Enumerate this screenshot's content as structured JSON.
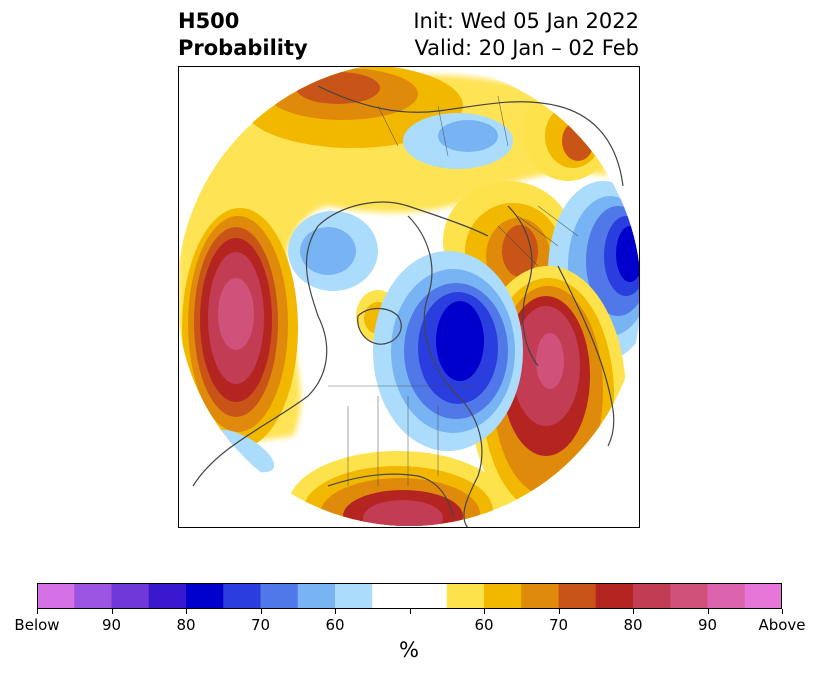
{
  "title": {
    "left_line1": "H500",
    "left_line2": "Probability",
    "right_line1": "Init: Wed 05 Jan 2022",
    "right_line2": "Valid: 20 Jan – 02 Feb"
  },
  "colorbar": {
    "unit": "%",
    "labels": [
      "Below",
      "90",
      "80",
      "70",
      "60",
      "60",
      "70",
      "80",
      "90",
      "Above"
    ],
    "colors": [
      "#d670e6",
      "#9b55e0",
      "#7038d8",
      "#3a18d0",
      "#0000cc",
      "#2a3ee0",
      "#5078e8",
      "#78b4f4",
      "#acdcfc",
      "#ffffff",
      "#ffffff",
      "#fee24c",
      "#f2b800",
      "#e08a0c",
      "#c85418",
      "#b42420",
      "#c23c54",
      "#d0527a",
      "#dc64ae",
      "#e676d8"
    ]
  },
  "map": {
    "projection": "north-polar-stereographic",
    "anomalies": [
      {
        "region": "North Pacific",
        "sign": "above",
        "max_level": "90"
      },
      {
        "region": "North Atlantic",
        "sign": "above",
        "max_level": "90"
      },
      {
        "region": "Southeastern United States / Gulf",
        "sign": "above",
        "max_level": "80"
      },
      {
        "region": "Eastern Canada / Hudson Bay",
        "sign": "below",
        "max_level": "80"
      },
      {
        "region": "Western Siberia",
        "sign": "below",
        "max_level": "80"
      },
      {
        "region": "Northern Europe / Scandinavia",
        "sign": "above",
        "max_level": "70"
      },
      {
        "region": "Eastern Siberia",
        "sign": "above",
        "max_level": "70"
      }
    ],
    "colors": {
      "coastline": "#444444",
      "frame": "#000000"
    }
  }
}
